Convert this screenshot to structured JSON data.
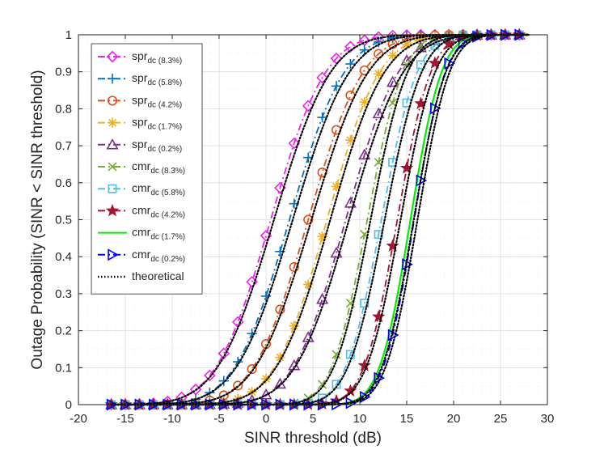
{
  "chart_data": {
    "type": "line",
    "title": "",
    "xlabel": "SINR threshold (dB)",
    "ylabel": "Outage Probability (SINR < SINR threshold)",
    "xlim": [
      -20,
      30
    ],
    "ylim": [
      0,
      1
    ],
    "xticks": [
      -20,
      -15,
      -10,
      -5,
      0,
      5,
      10,
      15,
      20,
      25,
      30
    ],
    "yticks": [
      0,
      0.1,
      0.2,
      0.3,
      0.4,
      0.5,
      0.6,
      0.7,
      0.8,
      0.9,
      1
    ],
    "grid": true,
    "legend_position": "top-left",
    "series": [
      {
        "name": "spr",
        "subscript": "dc (8.3%)",
        "color": "#ee22ee",
        "line": "dashdot",
        "marker": "diamond",
        "mu": 0.5,
        "sigma": 4.6
      },
      {
        "name": "spr",
        "subscript": "dc (5.8%)",
        "color": "#0072bd",
        "line": "dashdot",
        "marker": "plus",
        "mu": 2.5,
        "sigma": 4.6
      },
      {
        "name": "spr",
        "subscript": "dc (4.2%)",
        "color": "#d95319",
        "line": "dashdot",
        "marker": "circle",
        "mu": 4.5,
        "sigma": 4.6
      },
      {
        "name": "spr",
        "subscript": "dc (1.7%)",
        "color": "#edb120",
        "line": "dashdot",
        "marker": "asterisk",
        "mu": 6.5,
        "sigma": 4.4
      },
      {
        "name": "spr",
        "subscript": "dc (0.2%)",
        "color": "#7e2f8e",
        "line": "dashdot",
        "marker": "triangle",
        "mu": 8.5,
        "sigma": 4.4
      },
      {
        "name": "cmr",
        "subscript": "dc (8.3%)",
        "color": "#77ac30",
        "line": "dashdot",
        "marker": "x",
        "mu": 10.8,
        "sigma": 3.0
      },
      {
        "name": "cmr",
        "subscript": "dc (5.8%)",
        "color": "#4dbeee",
        "line": "dashdot",
        "marker": "square",
        "mu": 12.3,
        "sigma": 3.0
      },
      {
        "name": "cmr",
        "subscript": "dc (4.2%)",
        "color": "#a2142f",
        "line": "dashdot",
        "marker": "star",
        "mu": 14.0,
        "sigma": 2.8
      },
      {
        "name": "cmr",
        "subscript": "dc (1.7%)",
        "color": "#00ee00",
        "line": "solid",
        "marker": "none",
        "mu": 15.4,
        "sigma": 2.6
      },
      {
        "name": "cmr",
        "subscript": "dc (0.2%)",
        "color": "#0000ff",
        "line": "dashdot",
        "marker": "triangle-right",
        "mu": 15.8,
        "sigma": 2.6
      },
      {
        "name": "theoretical",
        "subscript": "",
        "color": "#000000",
        "line": "dotted",
        "marker": "none"
      }
    ],
    "x_range": [
      -16.5,
      28
    ],
    "x_step": 1.5
  }
}
